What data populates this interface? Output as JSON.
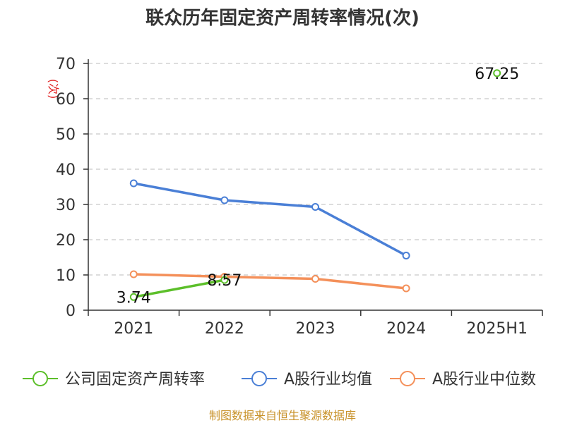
{
  "chart_data": {
    "type": "line",
    "title": "联众历年固定资产周转率情况(次)",
    "ylabel": "(次)",
    "xlabel": "",
    "categories": [
      "2021",
      "2022",
      "2023",
      "2024",
      "2025H1"
    ],
    "ylim": [
      0,
      70
    ],
    "yticks": [
      0,
      10,
      20,
      30,
      40,
      50,
      60,
      70
    ],
    "grid": true,
    "legend_position": "bottom",
    "series": [
      {
        "name": "公司固定资产周转率",
        "color": "#5cbf2a",
        "values": [
          3.74,
          8.57,
          null,
          null,
          67.25
        ],
        "labels": [
          "3.74",
          "8.57",
          null,
          null,
          "67.25"
        ]
      },
      {
        "name": "A股行业均值",
        "color": "#4a7fd6",
        "values": [
          36.0,
          31.2,
          29.3,
          15.5,
          null
        ]
      },
      {
        "name": "A股行业中位数",
        "color": "#f4905a",
        "values": [
          10.2,
          9.5,
          8.9,
          6.2,
          null
        ]
      }
    ]
  },
  "source": "制图数据来自恒生聚源数据库"
}
